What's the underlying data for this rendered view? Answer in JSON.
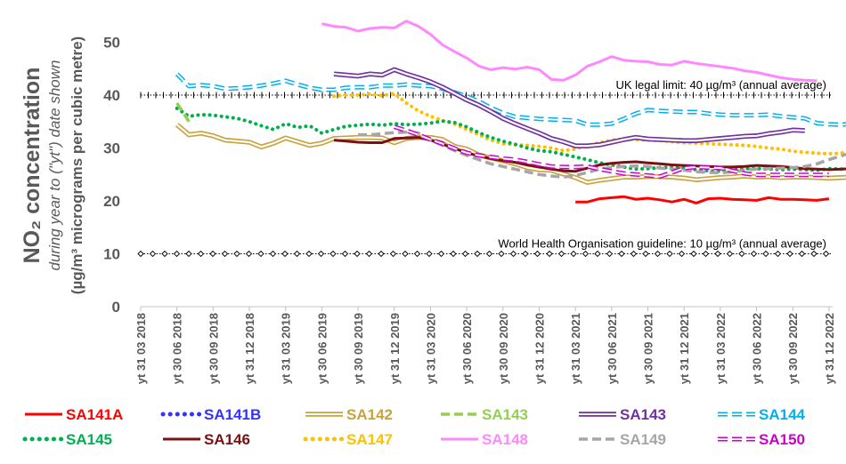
{
  "chart_data": {
    "type": "line",
    "title": "",
    "ylabel_main": "NO₂ concentration",
    "ylabel_sub": "during year to (\"yt\") date shown",
    "ylabel_units": "(µg/m³ micrograms per cubic metre)",
    "ylim": [
      0,
      55
    ],
    "yticks": [
      "0",
      "10",
      "20",
      "30",
      "40",
      "50"
    ],
    "grid": false,
    "legend_position": "bottom",
    "x_labels": [
      "yt 31 03 2018",
      "yt 30 06 2018",
      "yt 30 09 2018",
      "yt 31 12 2018",
      "yt 31 03 2019",
      "yt 30 06 2019",
      "yt 30 09 2019",
      "yt 31 12 2019",
      "yt 31 03 2020",
      "yt 30 06 2020",
      "yt 30 09 2020",
      "yt 31 12 2020",
      "yt 31 03 2021",
      "yt 30 06 2021",
      "yt 30 09 2021",
      "yt 31 12 2021",
      "yt 31 03 2022",
      "yt 30 06 2022",
      "yt 30 09 2022",
      "yt 31 12 2022"
    ],
    "x_months": [
      "2018-03",
      "2018-04",
      "2018-05",
      "2018-06",
      "2018-07",
      "2018-08",
      "2018-09",
      "2018-10",
      "2018-11",
      "2018-12",
      "2019-01",
      "2019-02",
      "2019-03",
      "2019-04",
      "2019-05",
      "2019-06",
      "2019-07",
      "2019-08",
      "2019-09",
      "2019-10",
      "2019-11",
      "2019-12",
      "2020-01",
      "2020-02",
      "2020-03",
      "2020-04",
      "2020-05",
      "2020-06",
      "2020-07",
      "2020-08",
      "2020-09",
      "2020-10",
      "2020-11",
      "2020-12",
      "2021-01",
      "2021-02",
      "2021-03",
      "2021-04",
      "2021-05",
      "2021-06",
      "2021-07",
      "2021-08",
      "2021-09",
      "2021-10",
      "2021-11",
      "2021-12",
      "2022-01",
      "2022-02",
      "2022-03",
      "2022-04",
      "2022-05",
      "2022-06",
      "2022-07",
      "2022-08",
      "2022-09",
      "2022-10",
      "2022-11",
      "2022-12"
    ],
    "reference_lines": [
      {
        "value": 40,
        "label": "UK legal limit:  40 µg/m³ (annual average)",
        "color": "#000000"
      },
      {
        "value": 10,
        "label": "World Health Organisation guideline:  10 µg/m³ (annual average)",
        "color": "#000000"
      }
    ],
    "series": [
      {
        "name": "SA141A",
        "color": "#ff0000",
        "style": "solid",
        "start": "2021-03",
        "values": [
          19.8,
          19.8,
          20.4,
          20.6,
          20.8,
          20.3,
          20.5,
          20.2,
          19.8,
          20.3,
          19.6,
          20.4,
          20.5,
          20.3,
          20.2,
          20.1,
          20.6,
          20.3,
          20.3,
          20.2,
          20.1,
          20.4
        ]
      },
      {
        "name": "SA141B",
        "color": "#3333ff",
        "style": "dotted",
        "start": "",
        "values": []
      },
      {
        "name": "SA142",
        "color": "#c8a23c",
        "style": "double",
        "start": "2018-06",
        "values": [
          34.4,
          32.5,
          32.8,
          32.3,
          31.5,
          31.3,
          31.1,
          30.2,
          30.9,
          31.9,
          31.2,
          30.5,
          30.9,
          31.8,
          31.9,
          32.0,
          32.0,
          31.9,
          31.0,
          31.8,
          32.0,
          32.0,
          31.6,
          30.3,
          29.8,
          28.7,
          28.1,
          27.6,
          27.0,
          26.3,
          25.9,
          25.8,
          25.1,
          24.4,
          23.5,
          23.9,
          24.2,
          24.5,
          24.5,
          24.6,
          24.6,
          24.5,
          24.3,
          24.0,
          24.2,
          24.4,
          24.5,
          24.7,
          24.5,
          24.6,
          24.4,
          24.5,
          24.5,
          24.4,
          24.3,
          24.4,
          24.5,
          24.6
        ]
      },
      {
        "name": "SA143",
        "color": "#92d050",
        "style": "dashed",
        "start": "2018-06",
        "values": [
          38.5,
          35.0
        ]
      },
      {
        "name": "SA143",
        "color": "#7030a0",
        "style": "double",
        "start": "2019-07",
        "values": [
          44.0,
          43.8,
          43.6,
          44.0,
          43.8,
          44.8,
          44.0,
          43.3,
          42.5,
          41.5,
          40.3,
          39.1,
          38.1,
          36.9,
          35.6,
          34.6,
          33.7,
          32.8,
          31.8,
          31.2,
          30.4,
          30.4,
          30.6,
          31.1,
          31.6,
          32.0,
          31.7,
          31.6,
          31.5,
          31.4,
          31.4,
          31.6,
          31.8,
          32.0,
          32.2,
          32.3,
          32.7,
          33.0,
          33.4,
          33.3
        ]
      },
      {
        "name": "SA144",
        "color": "#00b0f0",
        "style": "dashed-double",
        "start": "2018-06",
        "values": [
          44.0,
          41.7,
          41.9,
          41.7,
          41.2,
          41.3,
          41.5,
          41.8,
          42.2,
          42.7,
          42.0,
          41.4,
          41.0,
          41.0,
          41.4,
          41.5,
          41.5,
          41.8,
          41.8,
          42.0,
          41.8,
          41.7,
          41.2,
          40.5,
          39.8,
          38.8,
          37.6,
          36.6,
          35.9,
          35.7,
          35.5,
          35.4,
          35.3,
          35.2,
          34.4,
          34.4,
          34.6,
          35.5,
          36.5,
          37.2,
          37.0,
          36.9,
          36.8,
          36.8,
          36.5,
          36.3,
          36.2,
          36.2,
          36.2,
          36.3,
          36.0,
          35.8,
          35.6,
          34.7,
          34.5,
          34.4,
          34.6,
          34.8
        ]
      },
      {
        "name": "SA145",
        "color": "#00b050",
        "style": "dotted",
        "start": "2018-06",
        "values": [
          37.5,
          36.0,
          36.3,
          36.2,
          35.9,
          35.6,
          35.0,
          34.2,
          33.5,
          34.6,
          33.9,
          34.2,
          32.8,
          33.5,
          34.1,
          34.3,
          34.5,
          34.3,
          34.6,
          34.4,
          34.5,
          34.7,
          35.1,
          34.8,
          34.0,
          32.9,
          32.0,
          31.3,
          30.7,
          30.0,
          29.5,
          29.3,
          28.8,
          28.3,
          27.8,
          27.2,
          26.8,
          26.4,
          26.0,
          26.1,
          26.3,
          26.3,
          26.2,
          25.9,
          25.7,
          25.6,
          25.9,
          26.1,
          26.1,
          26.0,
          25.9,
          26.0,
          25.9,
          25.8,
          26.1,
          26.0,
          26.0,
          26.2
        ]
      },
      {
        "name": "SA146",
        "color": "#7b1010",
        "style": "solid",
        "start": "2019-07",
        "values": [
          31.5,
          31.3,
          31.1,
          31.0,
          31.0,
          31.8,
          31.9,
          32.0,
          31.5,
          30.7,
          29.9,
          29.1,
          28.5,
          28.0,
          27.6,
          27.3,
          26.8,
          26.4,
          26.0,
          25.7,
          25.6,
          26.2,
          26.8,
          27.1,
          27.3,
          27.4,
          27.2,
          27.0,
          26.8,
          26.7,
          26.6,
          26.5,
          26.4,
          26.4,
          26.5,
          26.7,
          26.6,
          26.5,
          26.3,
          26.1,
          26.0,
          25.9,
          26.0,
          26.1
        ]
      },
      {
        "name": "SA147",
        "color": "#ffc000",
        "style": "dotted",
        "start": "2019-07",
        "values": [
          39.8,
          40.0,
          40.0,
          40.2,
          39.9,
          40.3,
          38.5,
          37.0,
          36.0,
          35.2,
          34.5,
          33.5,
          32.5,
          31.5,
          30.8,
          30.6,
          30.5,
          30.3,
          30.0,
          29.5,
          29.8,
          30.5,
          31.0,
          31.5,
          31.7,
          31.6,
          31.5,
          31.4,
          31.2,
          31.0,
          30.9,
          30.8,
          30.7,
          30.6,
          30.5,
          30.3,
          30.0,
          29.8,
          29.4,
          29.2,
          29.0,
          28.9,
          29.0,
          29.5
        ]
      },
      {
        "name": "SA148",
        "color": "#ff88ff",
        "style": "solid",
        "start": "2019-06",
        "values": [
          53.5,
          53.0,
          52.8,
          52.1,
          52.6,
          52.8,
          52.7,
          54.0,
          53.0,
          51.5,
          49.5,
          48.2,
          47.0,
          45.5,
          44.8,
          45.2,
          44.9,
          45.3,
          44.8,
          43.0,
          42.8,
          43.8,
          45.5,
          46.3,
          47.3,
          46.6,
          46.4,
          46.3,
          45.8,
          45.7,
          46.4,
          46.0,
          45.7,
          45.4,
          45.1,
          44.6,
          44.3,
          43.8,
          43.3,
          43.0,
          42.8,
          42.7
        ]
      },
      {
        "name": "SA149",
        "color": "#a6a6a6",
        "style": "dashed",
        "start": "2019-09",
        "values": [
          32.5,
          32.5,
          32.7,
          32.9,
          33.0,
          32.8,
          31.5,
          30.5,
          29.5,
          28.6,
          27.8,
          27.0,
          26.5,
          26.0,
          25.5,
          25.0,
          24.7,
          24.5,
          24.8,
          25.4,
          26.0,
          26.3,
          26.5,
          26.6,
          26.5,
          26.2,
          26.0,
          25.8,
          25.5,
          25.4,
          25.3,
          25.5,
          25.8,
          26.0,
          26.1,
          26.2,
          26.3,
          26.5,
          27.0,
          27.8,
          28.5,
          29.2,
          30.0
        ]
      },
      {
        "name": "SA150",
        "color": "#cc00cc",
        "style": "dashed-double",
        "start": "2019-12",
        "values": [
          34.0,
          33.3,
          32.5,
          31.6,
          30.8,
          29.9,
          29.1,
          28.6,
          28.3,
          28.0,
          27.8,
          27.4,
          26.9,
          26.5,
          26.4,
          26.4,
          26.5,
          26.0,
          25.6,
          25.2,
          25.0,
          24.8,
          24.6,
          25.4,
          26.2,
          26.4,
          26.3,
          26.2,
          25.7,
          25.2,
          24.9,
          24.9,
          24.9,
          24.9,
          24.9,
          24.9,
          24.9
        ]
      }
    ]
  }
}
